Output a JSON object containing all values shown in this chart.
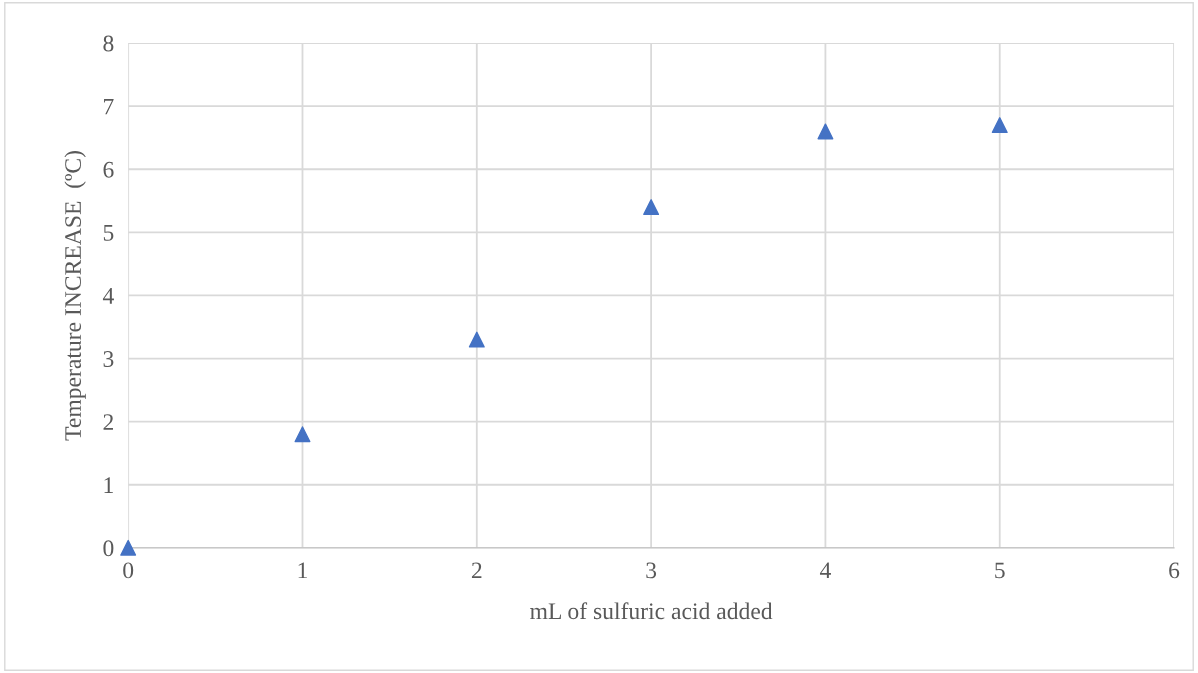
{
  "chart_data": {
    "type": "scatter",
    "xlabel": "mL of sulfuric acid added",
    "ylabel": "Temperature INCREASE  (ºC)",
    "x": [
      0,
      1,
      2,
      3,
      4,
      5
    ],
    "series": [
      {
        "color": "#4472c4",
        "values": [
          0,
          1.8,
          3.3,
          5.4,
          6.6,
          6.7
        ]
      }
    ],
    "xlim": [
      0,
      6
    ],
    "xticks": [
      0,
      1,
      2,
      3,
      4,
      5,
      6
    ],
    "ylim": [
      0,
      8
    ],
    "yticks": [
      0,
      1,
      2,
      3,
      4,
      5,
      6,
      7,
      8
    ],
    "grid": true,
    "marker": "triangle",
    "legend": false
  }
}
